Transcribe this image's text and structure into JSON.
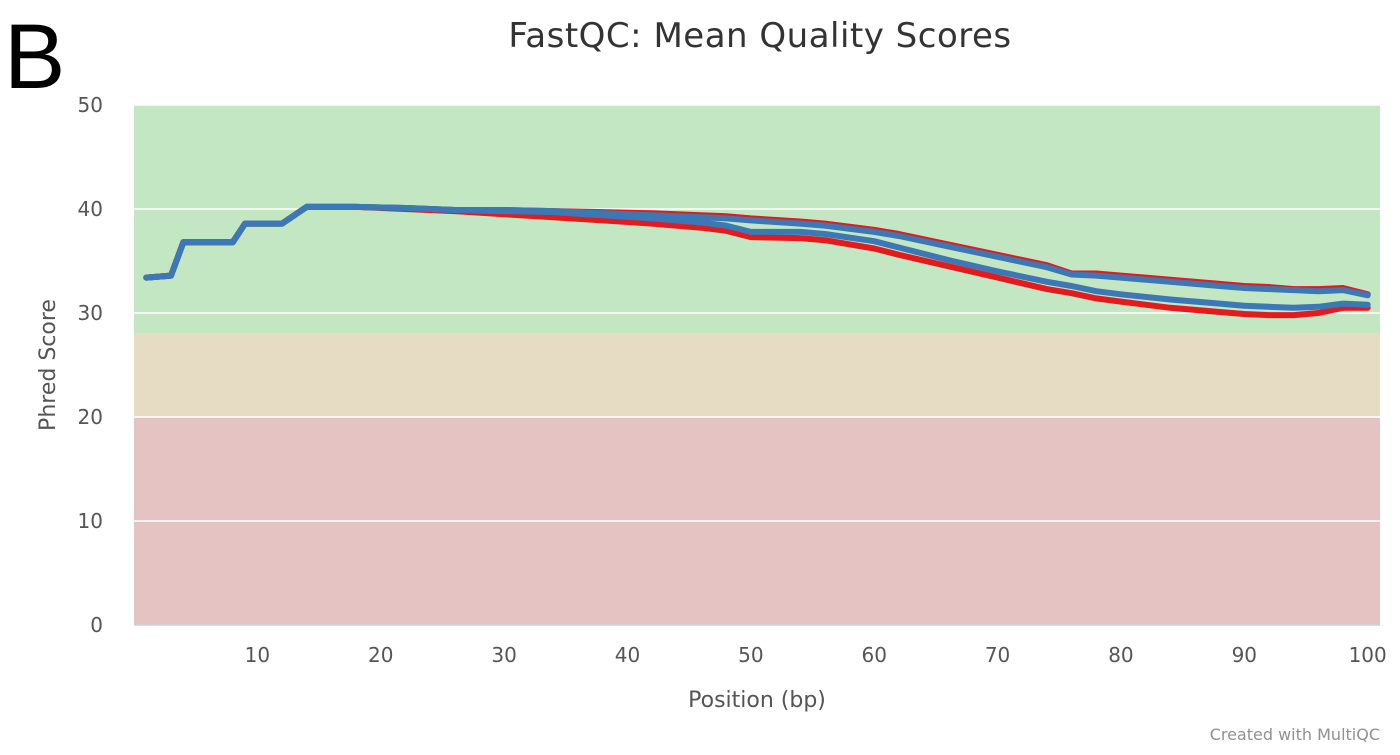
{
  "panel_label": "B",
  "credit": "Created with MultiQC",
  "colors": {
    "zone_good": "#c3e6c3",
    "zone_warn": "#e6dcc3",
    "zone_fail": "#e6c3c3",
    "sample_a_line": "#3b78b5",
    "sample_b_line": "#e41a1c",
    "grid": "#ffffff"
  },
  "chart_data": {
    "type": "line",
    "title": "FastQC: Mean Quality Scores",
    "xlabel": "Position (bp)",
    "ylabel": "Phred Score",
    "xlim": [
      0,
      101
    ],
    "ylim": [
      0,
      50
    ],
    "xticks": [
      10,
      20,
      30,
      40,
      50,
      60,
      70,
      80,
      90,
      100
    ],
    "yticks": [
      0,
      10,
      20,
      30,
      40,
      50
    ],
    "grid": true,
    "legend": "none",
    "bands": [
      {
        "from": 28,
        "to": 50,
        "color": "#c3e6c3"
      },
      {
        "from": 20,
        "to": 28,
        "color": "#e6dcc3"
      },
      {
        "from": 0,
        "to": 20,
        "color": "#e6c3c3"
      }
    ],
    "series": [
      {
        "color": "#e41a1c",
        "width": 6,
        "x": [
          1,
          3,
          4,
          8,
          9,
          12,
          14,
          18,
          22,
          26,
          30,
          34,
          38,
          42,
          46,
          48,
          50,
          54,
          56,
          60,
          62,
          66,
          70,
          74,
          76,
          78,
          80,
          84,
          88,
          90,
          92,
          94,
          96,
          98,
          100
        ],
        "y": [
          33.4,
          33.6,
          36.8,
          36.8,
          38.6,
          38.6,
          40.2,
          40.2,
          40.0,
          39.8,
          39.5,
          39.2,
          38.9,
          38.6,
          38.2,
          37.9,
          37.3,
          37.2,
          37.0,
          36.2,
          35.6,
          34.5,
          33.4,
          32.3,
          31.9,
          31.4,
          31.1,
          30.5,
          30.1,
          29.9,
          29.8,
          29.8,
          30.0,
          30.5,
          30.5
        ]
      },
      {
        "color": "#e41a1c",
        "width": 6,
        "x": [
          1,
          3,
          4,
          8,
          9,
          12,
          14,
          18,
          22,
          26,
          30,
          34,
          38,
          42,
          46,
          48,
          50,
          54,
          56,
          60,
          62,
          66,
          70,
          74,
          76,
          78,
          80,
          84,
          88,
          90,
          92,
          94,
          96,
          98,
          100
        ],
        "y": [
          33.4,
          33.6,
          36.8,
          36.8,
          38.6,
          38.6,
          40.2,
          40.2,
          40.1,
          39.9,
          39.9,
          39.8,
          39.7,
          39.6,
          39.4,
          39.3,
          39.1,
          38.8,
          38.6,
          38.0,
          37.6,
          36.6,
          35.6,
          34.6,
          33.8,
          33.8,
          33.6,
          33.2,
          32.8,
          32.6,
          32.5,
          32.3,
          32.3,
          32.4,
          31.8
        ]
      },
      {
        "color": "#3b78b5",
        "width": 6,
        "x": [
          1,
          3,
          4,
          8,
          9,
          12,
          14,
          18,
          22,
          26,
          30,
          34,
          38,
          42,
          46,
          48,
          50,
          54,
          56,
          60,
          62,
          66,
          70,
          74,
          76,
          78,
          80,
          84,
          88,
          90,
          92,
          94,
          96,
          98,
          100
        ],
        "y": [
          33.4,
          33.6,
          36.8,
          36.8,
          38.6,
          38.6,
          40.2,
          40.2,
          40.1,
          39.9,
          39.8,
          39.7,
          39.4,
          39.1,
          38.7,
          38.4,
          37.8,
          37.8,
          37.6,
          36.9,
          36.3,
          35.1,
          34.0,
          33.0,
          32.6,
          32.1,
          31.8,
          31.3,
          30.9,
          30.7,
          30.6,
          30.5,
          30.6,
          30.9,
          30.8
        ]
      },
      {
        "color": "#3b78b5",
        "width": 6,
        "x": [
          1,
          3,
          4,
          8,
          9,
          12,
          14,
          18,
          22,
          26,
          30,
          34,
          38,
          42,
          46,
          48,
          50,
          54,
          56,
          60,
          62,
          66,
          70,
          74,
          76,
          78,
          80,
          84,
          88,
          90,
          92,
          94,
          96,
          98,
          100
        ],
        "y": [
          33.4,
          33.6,
          36.8,
          36.8,
          38.6,
          38.6,
          40.2,
          40.2,
          40.1,
          39.9,
          39.9,
          39.8,
          39.6,
          39.4,
          39.2,
          39.1,
          38.9,
          38.6,
          38.4,
          37.8,
          37.4,
          36.4,
          35.4,
          34.4,
          33.7,
          33.6,
          33.4,
          33.0,
          32.6,
          32.4,
          32.3,
          32.2,
          32.1,
          32.2,
          31.7
        ]
      }
    ]
  }
}
